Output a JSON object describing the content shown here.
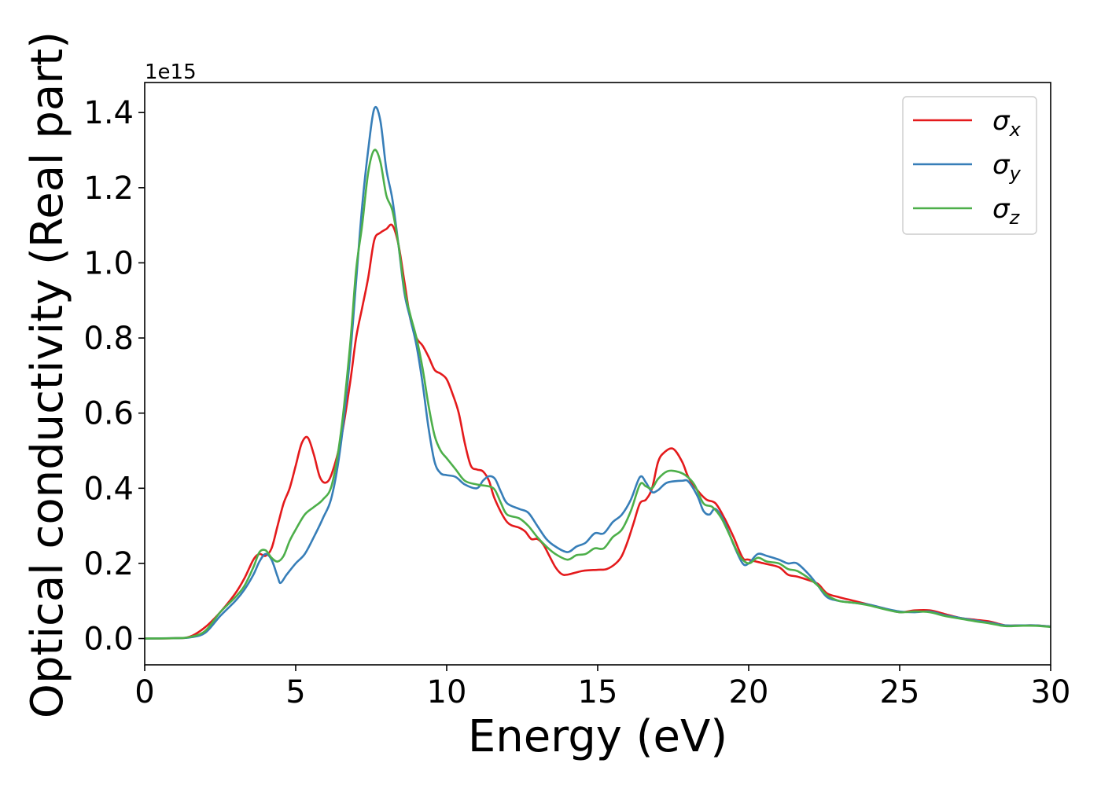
{
  "chart_data": {
    "type": "line",
    "title": "",
    "xlabel": "Energy (eV)",
    "ylabel": "Optical conductivity (Real part)",
    "y_offset_text": "1e15",
    "xlim": [
      0,
      30
    ],
    "ylim": [
      -0.07,
      1.48
    ],
    "x_ticks": [
      0,
      5,
      10,
      15,
      20,
      25,
      30
    ],
    "x_tick_labels": [
      "0",
      "5",
      "10",
      "15",
      "20",
      "25",
      "30"
    ],
    "y_ticks": [
      0.0,
      0.2,
      0.4,
      0.6,
      0.8,
      1.0,
      1.2,
      1.4
    ],
    "y_tick_labels": [
      "0.0",
      "0.2",
      "0.4",
      "0.6",
      "0.8",
      "1.0",
      "1.2",
      "1.4"
    ],
    "grid": false,
    "legend_position": "top-right",
    "series": [
      {
        "name": "σx",
        "symbol": "σ",
        "subscript": "x",
        "color": "#e41a1c",
        "points": [
          [
            0,
            0
          ],
          [
            1,
            0.001
          ],
          [
            1.5,
            0.005
          ],
          [
            2,
            0.03
          ],
          [
            2.5,
            0.07
          ],
          [
            3,
            0.12
          ],
          [
            3.3,
            0.16
          ],
          [
            3.6,
            0.21
          ],
          [
            3.8,
            0.225
          ],
          [
            4,
            0.22
          ],
          [
            4.2,
            0.24
          ],
          [
            4.4,
            0.3
          ],
          [
            4.6,
            0.36
          ],
          [
            4.8,
            0.4
          ],
          [
            5,
            0.46
          ],
          [
            5.2,
            0.52
          ],
          [
            5.4,
            0.535
          ],
          [
            5.6,
            0.49
          ],
          [
            5.8,
            0.43
          ],
          [
            6,
            0.415
          ],
          [
            6.2,
            0.44
          ],
          [
            6.5,
            0.53
          ],
          [
            6.8,
            0.68
          ],
          [
            7,
            0.8
          ],
          [
            7.2,
            0.88
          ],
          [
            7.4,
            0.96
          ],
          [
            7.6,
            1.06
          ],
          [
            7.8,
            1.08
          ],
          [
            8,
            1.09
          ],
          [
            8.2,
            1.1
          ],
          [
            8.4,
            1.05
          ],
          [
            8.6,
            0.95
          ],
          [
            8.8,
            0.85
          ],
          [
            9,
            0.8
          ],
          [
            9.2,
            0.78
          ],
          [
            9.4,
            0.75
          ],
          [
            9.6,
            0.715
          ],
          [
            9.8,
            0.705
          ],
          [
            10,
            0.69
          ],
          [
            10.2,
            0.65
          ],
          [
            10.4,
            0.6
          ],
          [
            10.6,
            0.52
          ],
          [
            10.8,
            0.46
          ],
          [
            11,
            0.45
          ],
          [
            11.2,
            0.445
          ],
          [
            11.4,
            0.42
          ],
          [
            11.6,
            0.37
          ],
          [
            12,
            0.31
          ],
          [
            12.4,
            0.295
          ],
          [
            12.6,
            0.285
          ],
          [
            12.8,
            0.265
          ],
          [
            13,
            0.265
          ],
          [
            13.2,
            0.25
          ],
          [
            13.4,
            0.22
          ],
          [
            13.6,
            0.19
          ],
          [
            13.8,
            0.172
          ],
          [
            14,
            0.17
          ],
          [
            14.5,
            0.18
          ],
          [
            15,
            0.183
          ],
          [
            15.3,
            0.185
          ],
          [
            15.6,
            0.2
          ],
          [
            15.8,
            0.22
          ],
          [
            16,
            0.26
          ],
          [
            16.2,
            0.31
          ],
          [
            16.4,
            0.36
          ],
          [
            16.6,
            0.37
          ],
          [
            16.8,
            0.4
          ],
          [
            17,
            0.47
          ],
          [
            17.2,
            0.495
          ],
          [
            17.5,
            0.505
          ],
          [
            17.8,
            0.47
          ],
          [
            18,
            0.43
          ],
          [
            18.3,
            0.395
          ],
          [
            18.6,
            0.37
          ],
          [
            18.9,
            0.36
          ],
          [
            19.2,
            0.32
          ],
          [
            19.5,
            0.27
          ],
          [
            19.8,
            0.215
          ],
          [
            20,
            0.21
          ],
          [
            20.5,
            0.2
          ],
          [
            21,
            0.19
          ],
          [
            21.3,
            0.17
          ],
          [
            21.6,
            0.165
          ],
          [
            22,
            0.155
          ],
          [
            22.3,
            0.145
          ],
          [
            22.6,
            0.12
          ],
          [
            23,
            0.11
          ],
          [
            23.5,
            0.1
          ],
          [
            24,
            0.09
          ],
          [
            24.5,
            0.08
          ],
          [
            25,
            0.07
          ],
          [
            25.5,
            0.075
          ],
          [
            26,
            0.075
          ],
          [
            26.5,
            0.065
          ],
          [
            27,
            0.055
          ],
          [
            27.5,
            0.05
          ],
          [
            28,
            0.045
          ],
          [
            28.5,
            0.035
          ],
          [
            29,
            0.035
          ],
          [
            29.5,
            0.035
          ],
          [
            30,
            0.032
          ]
        ]
      },
      {
        "name": "σy",
        "symbol": "σ",
        "subscript": "y",
        "color": "#377eb8",
        "points": [
          [
            0,
            0
          ],
          [
            1,
            0.001
          ],
          [
            1.5,
            0.003
          ],
          [
            2,
            0.015
          ],
          [
            2.5,
            0.06
          ],
          [
            3,
            0.1
          ],
          [
            3.3,
            0.13
          ],
          [
            3.6,
            0.17
          ],
          [
            3.8,
            0.205
          ],
          [
            4,
            0.225
          ],
          [
            4.2,
            0.21
          ],
          [
            4.4,
            0.165
          ],
          [
            4.5,
            0.148
          ],
          [
            4.7,
            0.17
          ],
          [
            5,
            0.2
          ],
          [
            5.3,
            0.225
          ],
          [
            5.6,
            0.27
          ],
          [
            5.9,
            0.32
          ],
          [
            6.2,
            0.38
          ],
          [
            6.5,
            0.52
          ],
          [
            6.8,
            0.75
          ],
          [
            7,
            0.95
          ],
          [
            7.2,
            1.15
          ],
          [
            7.4,
            1.3
          ],
          [
            7.6,
            1.41
          ],
          [
            7.8,
            1.38
          ],
          [
            8,
            1.25
          ],
          [
            8.2,
            1.17
          ],
          [
            8.4,
            1.05
          ],
          [
            8.6,
            0.92
          ],
          [
            8.8,
            0.85
          ],
          [
            9,
            0.78
          ],
          [
            9.2,
            0.68
          ],
          [
            9.4,
            0.56
          ],
          [
            9.6,
            0.47
          ],
          [
            9.8,
            0.44
          ],
          [
            10,
            0.435
          ],
          [
            10.3,
            0.43
          ],
          [
            10.6,
            0.41
          ],
          [
            11,
            0.4
          ],
          [
            11.2,
            0.42
          ],
          [
            11.4,
            0.432
          ],
          [
            11.6,
            0.425
          ],
          [
            11.8,
            0.39
          ],
          [
            12,
            0.36
          ],
          [
            12.4,
            0.345
          ],
          [
            12.7,
            0.335
          ],
          [
            13,
            0.3
          ],
          [
            13.3,
            0.265
          ],
          [
            13.6,
            0.245
          ],
          [
            14,
            0.23
          ],
          [
            14.3,
            0.245
          ],
          [
            14.6,
            0.255
          ],
          [
            14.9,
            0.28
          ],
          [
            15.2,
            0.28
          ],
          [
            15.5,
            0.31
          ],
          [
            15.8,
            0.33
          ],
          [
            16.1,
            0.37
          ],
          [
            16.4,
            0.43
          ],
          [
            16.6,
            0.415
          ],
          [
            16.8,
            0.39
          ],
          [
            17,
            0.395
          ],
          [
            17.3,
            0.415
          ],
          [
            17.8,
            0.42
          ],
          [
            18,
            0.418
          ],
          [
            18.3,
            0.38
          ],
          [
            18.5,
            0.34
          ],
          [
            18.7,
            0.33
          ],
          [
            18.9,
            0.345
          ],
          [
            19.2,
            0.31
          ],
          [
            19.5,
            0.25
          ],
          [
            19.8,
            0.2
          ],
          [
            20,
            0.2
          ],
          [
            20.3,
            0.225
          ],
          [
            20.6,
            0.22
          ],
          [
            21,
            0.21
          ],
          [
            21.3,
            0.2
          ],
          [
            21.6,
            0.2
          ],
          [
            22,
            0.17
          ],
          [
            22.3,
            0.14
          ],
          [
            22.6,
            0.11
          ],
          [
            23,
            0.1
          ],
          [
            23.5,
            0.095
          ],
          [
            24,
            0.09
          ],
          [
            24.5,
            0.08
          ],
          [
            25,
            0.072
          ],
          [
            25.5,
            0.07
          ],
          [
            26,
            0.072
          ],
          [
            26.5,
            0.062
          ],
          [
            27,
            0.055
          ],
          [
            27.5,
            0.048
          ],
          [
            28,
            0.042
          ],
          [
            28.5,
            0.035
          ],
          [
            29,
            0.035
          ],
          [
            29.5,
            0.035
          ],
          [
            30,
            0.032
          ]
        ]
      },
      {
        "name": "σz",
        "symbol": "σ",
        "subscript": "z",
        "color": "#4daf4a",
        "points": [
          [
            0,
            0
          ],
          [
            1,
            0.001
          ],
          [
            1.5,
            0.004
          ],
          [
            2,
            0.02
          ],
          [
            2.5,
            0.07
          ],
          [
            3,
            0.11
          ],
          [
            3.3,
            0.14
          ],
          [
            3.6,
            0.19
          ],
          [
            3.8,
            0.23
          ],
          [
            4,
            0.235
          ],
          [
            4.2,
            0.215
          ],
          [
            4.4,
            0.205
          ],
          [
            4.6,
            0.22
          ],
          [
            4.8,
            0.26
          ],
          [
            5,
            0.29
          ],
          [
            5.3,
            0.33
          ],
          [
            5.6,
            0.35
          ],
          [
            5.9,
            0.37
          ],
          [
            6.2,
            0.41
          ],
          [
            6.5,
            0.55
          ],
          [
            6.8,
            0.78
          ],
          [
            7,
            0.98
          ],
          [
            7.2,
            1.1
          ],
          [
            7.4,
            1.24
          ],
          [
            7.6,
            1.3
          ],
          [
            7.8,
            1.27
          ],
          [
            8,
            1.18
          ],
          [
            8.2,
            1.14
          ],
          [
            8.4,
            1.05
          ],
          [
            8.6,
            0.93
          ],
          [
            8.8,
            0.86
          ],
          [
            9,
            0.8
          ],
          [
            9.2,
            0.72
          ],
          [
            9.4,
            0.62
          ],
          [
            9.6,
            0.54
          ],
          [
            9.8,
            0.5
          ],
          [
            10,
            0.48
          ],
          [
            10.3,
            0.45
          ],
          [
            10.6,
            0.42
          ],
          [
            11,
            0.41
          ],
          [
            11.4,
            0.405
          ],
          [
            11.6,
            0.395
          ],
          [
            11.8,
            0.36
          ],
          [
            12,
            0.33
          ],
          [
            12.4,
            0.32
          ],
          [
            12.7,
            0.3
          ],
          [
            13,
            0.27
          ],
          [
            13.3,
            0.245
          ],
          [
            13.6,
            0.225
          ],
          [
            14,
            0.21
          ],
          [
            14.3,
            0.222
          ],
          [
            14.6,
            0.225
          ],
          [
            14.9,
            0.24
          ],
          [
            15.2,
            0.24
          ],
          [
            15.5,
            0.27
          ],
          [
            15.8,
            0.29
          ],
          [
            16.1,
            0.34
          ],
          [
            16.4,
            0.41
          ],
          [
            16.6,
            0.405
          ],
          [
            16.8,
            0.4
          ],
          [
            17,
            0.425
          ],
          [
            17.3,
            0.445
          ],
          [
            17.6,
            0.445
          ],
          [
            17.9,
            0.435
          ],
          [
            18.2,
            0.41
          ],
          [
            18.5,
            0.36
          ],
          [
            18.8,
            0.35
          ],
          [
            19.1,
            0.32
          ],
          [
            19.4,
            0.27
          ],
          [
            19.7,
            0.22
          ],
          [
            20,
            0.2
          ],
          [
            20.3,
            0.215
          ],
          [
            20.6,
            0.205
          ],
          [
            21,
            0.2
          ],
          [
            21.3,
            0.185
          ],
          [
            21.6,
            0.18
          ],
          [
            22,
            0.16
          ],
          [
            22.3,
            0.14
          ],
          [
            22.6,
            0.115
          ],
          [
            23,
            0.1
          ],
          [
            23.5,
            0.095
          ],
          [
            24,
            0.088
          ],
          [
            24.5,
            0.078
          ],
          [
            25,
            0.07
          ],
          [
            25.5,
            0.072
          ],
          [
            26,
            0.07
          ],
          [
            26.5,
            0.06
          ],
          [
            27,
            0.053
          ],
          [
            27.5,
            0.046
          ],
          [
            28,
            0.04
          ],
          [
            28.5,
            0.033
          ],
          [
            29,
            0.034
          ],
          [
            29.5,
            0.034
          ],
          [
            30,
            0.031
          ]
        ]
      }
    ]
  }
}
